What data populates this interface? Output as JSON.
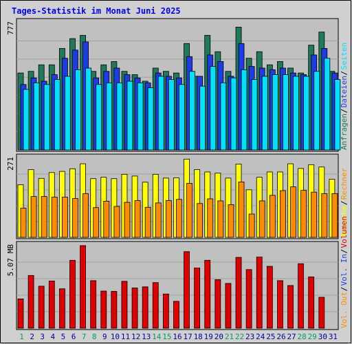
{
  "title": "Tages-Statistik im Monat Juni 2025",
  "colors": {
    "background": "#d0d0d0",
    "panel": "#c0c0c0",
    "grid": "#a0a0a0",
    "title": "#0000ff",
    "hits": "#1e7a5a",
    "files": "#1c3ce6",
    "pages": "#00e0ff",
    "visits": "#ffff00",
    "kbytes_in": "#ff8c00",
    "volume": "#e00000",
    "weekend_day": "#00a060",
    "weekday_day": "#0000a0"
  },
  "chart_data": [
    {
      "type": "bar",
      "panel": "top",
      "y_max_label": "777",
      "ylim": [
        0,
        777
      ],
      "grid": true,
      "days": [
        "1",
        "2",
        "3",
        "4",
        "5",
        "6",
        "7",
        "8",
        "9",
        "10",
        "11",
        "12",
        "13",
        "14",
        "15",
        "16",
        "17",
        "18",
        "19",
        "20",
        "21",
        "22",
        "23",
        "24",
        "25",
        "26",
        "27",
        "28",
        "29",
        "30",
        "31"
      ],
      "legend_right": [
        {
          "text": "Anfragen",
          "color": "#1e7a5a"
        },
        {
          "text": "Dateien",
          "color": "#1c3ce6"
        },
        {
          "text": "Seiten",
          "color": "#00e0ff"
        }
      ],
      "series": [
        {
          "name": "Anfragen",
          "color": "#1e7a5a",
          "values": [
            470,
            480,
            520,
            520,
            620,
            680,
            700,
            480,
            520,
            540,
            480,
            460,
            420,
            500,
            480,
            470,
            650,
            450,
            700,
            600,
            480,
            750,
            560,
            600,
            520,
            540,
            500,
            470,
            640,
            720,
            480
          ]
        },
        {
          "name": "Dateien",
          "color": "#1c3ce6",
          "values": [
            400,
            440,
            420,
            460,
            560,
            610,
            660,
            440,
            480,
            500,
            460,
            440,
            410,
            470,
            450,
            440,
            570,
            450,
            580,
            540,
            450,
            650,
            510,
            500,
            490,
            500,
            470,
            460,
            580,
            620,
            470
          ]
        },
        {
          "name": "Seiten",
          "color": "#00e0ff",
          "values": [
            370,
            410,
            400,
            430,
            450,
            490,
            500,
            400,
            410,
            410,
            420,
            410,
            380,
            450,
            430,
            400,
            480,
            390,
            510,
            410,
            440,
            490,
            430,
            450,
            460,
            460,
            450,
            450,
            480,
            560,
            430
          ]
        }
      ]
    },
    {
      "type": "bar",
      "panel": "middle",
      "y_max_label": "271",
      "ylim": [
        0,
        271
      ],
      "grid": true,
      "legend_right": [
        {
          "text": "Besuche",
          "color": "#ffff00"
        },
        {
          "text": "Rechner",
          "color": "#ff8c00"
        }
      ],
      "series": [
        {
          "name": "Besuche",
          "color": "#ffff00",
          "values": [
            180,
            232,
            202,
            222,
            226,
            235,
            252,
            201,
            206,
            201,
            216,
            210,
            189,
            216,
            203,
            204,
            268,
            232,
            224,
            220,
            203,
            251,
            163,
            206,
            224,
            224,
            252,
            236,
            249,
            241,
            199
          ]
        },
        {
          "name": "Rechner",
          "color": "#ff8c00",
          "values": [
            100,
            140,
            140,
            138,
            138,
            133,
            150,
            102,
            124,
            106,
            120,
            126,
            103,
            118,
            126,
            130,
            185,
            116,
            132,
            125,
            112,
            190,
            80,
            125,
            144,
            160,
            173,
            161,
            155,
            150,
            150
          ]
        }
      ]
    },
    {
      "type": "bar",
      "panel": "bottom",
      "y_max_label": "5.07 MB",
      "ylim": [
        0,
        5.07
      ],
      "grid": true,
      "legend_right": [
        {
          "text": "Vol. Out",
          "color": "#ff8c00"
        },
        {
          "text": "Vol. In",
          "color": "#1c3ce6"
        },
        {
          "text": "Volumen",
          "color": "#e00000"
        }
      ],
      "series": [
        {
          "name": "Volumen",
          "color": "#e00000",
          "values": [
            1.8,
            3.24,
            2.58,
            2.9,
            2.42,
            4.17,
            5.07,
            2.92,
            2.28,
            2.26,
            2.88,
            2.47,
            2.54,
            2.8,
            2.1,
            1.65,
            4.7,
            3.7,
            4.17,
            2.98,
            2.75,
            4.35,
            3.6,
            4.37,
            3.8,
            2.92,
            2.62,
            3.96,
            3.15,
            1.9,
            0
          ]
        }
      ]
    }
  ]
}
